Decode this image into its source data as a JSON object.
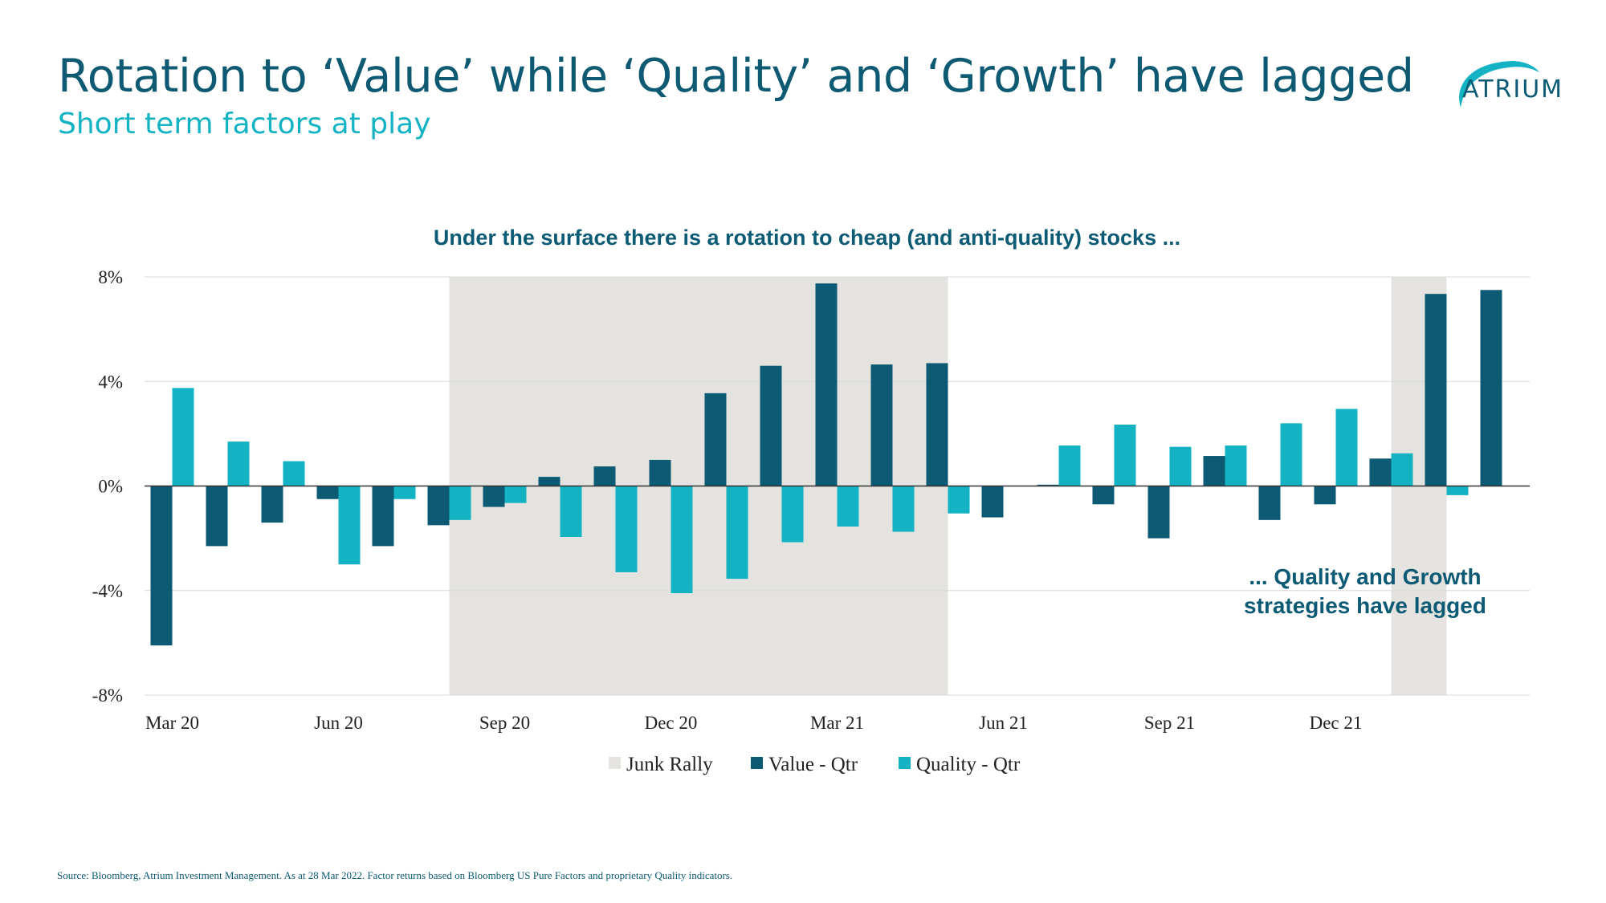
{
  "header": {
    "title": "Rotation to ‘Value’ while ‘Quality’ and ‘Growth’ have lagged",
    "subtitle": "Short term factors at play"
  },
  "logo": {
    "text": "ATRIUM"
  },
  "colors": {
    "value": "#0c5a74",
    "quality": "#13b3c4",
    "junk_rally": "#e4e3e0",
    "title": "#0e5a73"
  },
  "chart_data": {
    "type": "bar",
    "title": "Under the surface there is a rotation to cheap (and anti-quality) stocks ...",
    "ylim": [
      -8,
      8
    ],
    "yticks": [
      -8,
      -4,
      0,
      4,
      8
    ],
    "ytick_labels": [
      "-8%",
      "-4%",
      "0%",
      "4%",
      "8%"
    ],
    "x_tick_labels": [
      {
        "label": "Mar 20",
        "index": 0
      },
      {
        "label": "Jun 20",
        "index": 3
      },
      {
        "label": "Sep 20",
        "index": 6
      },
      {
        "label": "Dec 20",
        "index": 9
      },
      {
        "label": "Mar 21",
        "index": 12
      },
      {
        "label": "Jun 21",
        "index": 15
      },
      {
        "label": "Sep 21",
        "index": 18
      },
      {
        "label": "Dec 21",
        "index": 21
      }
    ],
    "series": [
      {
        "name": "Value - Qtr",
        "color": "#0c5a74",
        "values": [
          -6.1,
          -2.3,
          -1.4,
          -0.5,
          -2.3,
          -1.5,
          -0.8,
          0.35,
          0.75,
          1.0,
          3.55,
          4.6,
          7.75,
          4.65,
          4.7,
          -1.2,
          0.05,
          -0.7,
          -2.0,
          1.15,
          -1.3,
          -0.7,
          1.05,
          7.35,
          7.5
        ]
      },
      {
        "name": "Quality - Qtr",
        "color": "#13b3c4",
        "values": [
          3.75,
          1.7,
          0.95,
          -3.0,
          -0.5,
          -1.3,
          -0.65,
          -1.95,
          -3.3,
          -4.1,
          -3.55,
          -2.15,
          -1.55,
          -1.75,
          -1.05,
          null,
          1.55,
          2.35,
          1.5,
          1.55,
          2.4,
          2.95,
          1.25,
          -0.35,
          null
        ]
      }
    ],
    "shaded_regions": [
      {
        "name": "Junk Rally",
        "from_index": 5,
        "to_index": 14,
        "color": "#e4e3e0"
      },
      {
        "name": "Junk Rally",
        "from_index": 22,
        "to_index": 23,
        "color": "#e4e3e0"
      }
    ],
    "legend": [
      {
        "label": "Junk Rally",
        "color": "#e4e3e0"
      },
      {
        "label": "Value - Qtr",
        "color": "#0c5a74"
      },
      {
        "label": "Quality - Qtr",
        "color": "#13b3c4"
      }
    ],
    "legend_position": "bottom",
    "annotation": [
      "... Quality and Growth",
      "strategies have lagged"
    ],
    "grid": true
  },
  "footer": {
    "source": "Source: Bloomberg, Atrium Investment Management. As at 28 Mar 2022. Factor returns based on Bloomberg US Pure Factors and proprietary Quality indicators."
  }
}
